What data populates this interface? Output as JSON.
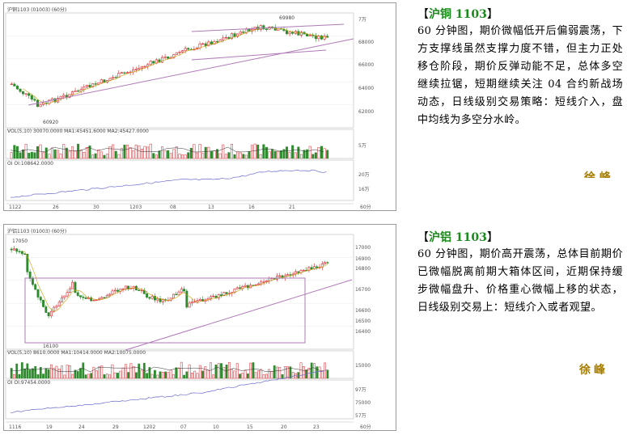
{
  "chart1": {
    "header_text": "沪铜1103 (01003) (60分)",
    "max_label": "69980",
    "min_label": "60920",
    "price_ticks": [
      "68000",
      "66000",
      "64000",
      "62000"
    ],
    "top_tick": "7万",
    "vol_header": "VOL(5,10) 30070.0000 MA1:45451.6000 MA2:45427.0000",
    "vol_tick": "5万",
    "oi_header": "OI OI:108642.0000",
    "oi_ticks": [
      "20万",
      "16万"
    ],
    "x_ticks": [
      "1122",
      "26",
      "30",
      "1203",
      "08",
      "13",
      "16",
      "21"
    ],
    "corner_label": "60分",
    "chart_data": {
      "type": "candlestick",
      "x": [
        "1122",
        "26",
        "30",
        "1203",
        "08",
        "13",
        "16",
        "21"
      ],
      "high": 69980,
      "low": 60920
    }
  },
  "chart2": {
    "header_text": "沪铝1103 (01003) (60分)",
    "max_label": "17050",
    "min_label": "16100",
    "price_ticks": [
      "17000",
      "16900",
      "16800",
      "16700",
      "16600",
      "16500",
      "16400"
    ],
    "vol_header": "VOL(5,10) 8610.0000 MA1:10414.0000 MA2:10075.0000",
    "vol_tick": "15000",
    "oi_header": "OI OI:97454.0000",
    "oi_ticks": [
      "97万",
      "75000",
      "57万"
    ],
    "x_ticks": [
      "1116",
      "19",
      "24",
      "29",
      "1202",
      "07",
      "10",
      "15",
      "20",
      "23"
    ],
    "corner_label": "60分",
    "chart_data": {
      "type": "candlestick",
      "x": [
        "1116",
        "19",
        "24",
        "29",
        "1202",
        "07",
        "10",
        "15",
        "20",
        "23"
      ],
      "high": 17050,
      "low": 16100
    }
  },
  "text1": {
    "title": "沪铜 1103",
    "body": "60 分钟图，期价微幅低开后偏弱震荡，下方支撑线虽然支撑力度不错，但主力正处移仓阶段，期价反弹动能不足，总体多空继续拉锯，短期继续关注 04 合约新战场动态，日线级别交易策略：短线介入，盘中均线为多空分水岭。",
    "signature": "徐 峰"
  },
  "text2": {
    "title": "沪铝 1103",
    "body": "60 分钟图，期价高开震荡，总体目前期价已微幅脱离前期大箱体区间，近期保持缓步微幅盘升、价格重心微幅上移的状态，日线级别交易上：短线介入或者观望。",
    "signature": "徐峰"
  },
  "colors": {
    "up": "#d8272d",
    "down": "#2e8b2e",
    "trend": "#b07ab8",
    "title_green": "#1a8a1a",
    "signature_gold": "#a77d00"
  }
}
